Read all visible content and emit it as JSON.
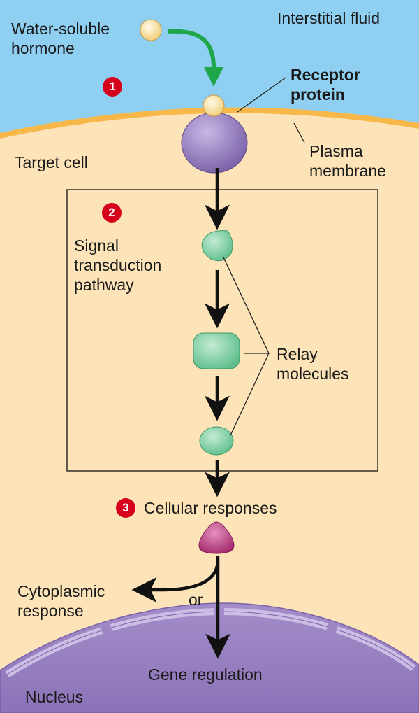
{
  "labels": {
    "hormone": "Water-soluble hormone",
    "interstitial": "Interstitial fluid",
    "receptor": "Receptor protein",
    "target_cell": "Target cell",
    "plasma_membrane": "Plasma membrane",
    "pathway": "Signal transduction pathway",
    "relay": "Relay molecules",
    "responses": "Cellular responses",
    "cytoplasmic": "Cytoplasmic response",
    "or": "or",
    "gene": "Gene regulation",
    "nucleus": "Nucleus"
  },
  "steps": [
    "1",
    "2",
    "3"
  ],
  "colors": {
    "fluid": "#8fd0f2",
    "membrane": "#f7b749",
    "cytoplasm": "#fde3b8",
    "receptor": "#8b74b8",
    "hormone": "#fbe6a4",
    "relay": "#86d1a8",
    "response_molecule": "#b8387c",
    "nucleus": "#a590c8",
    "arrow_green": "#1fa64a",
    "step_badge": "#d6001c"
  }
}
